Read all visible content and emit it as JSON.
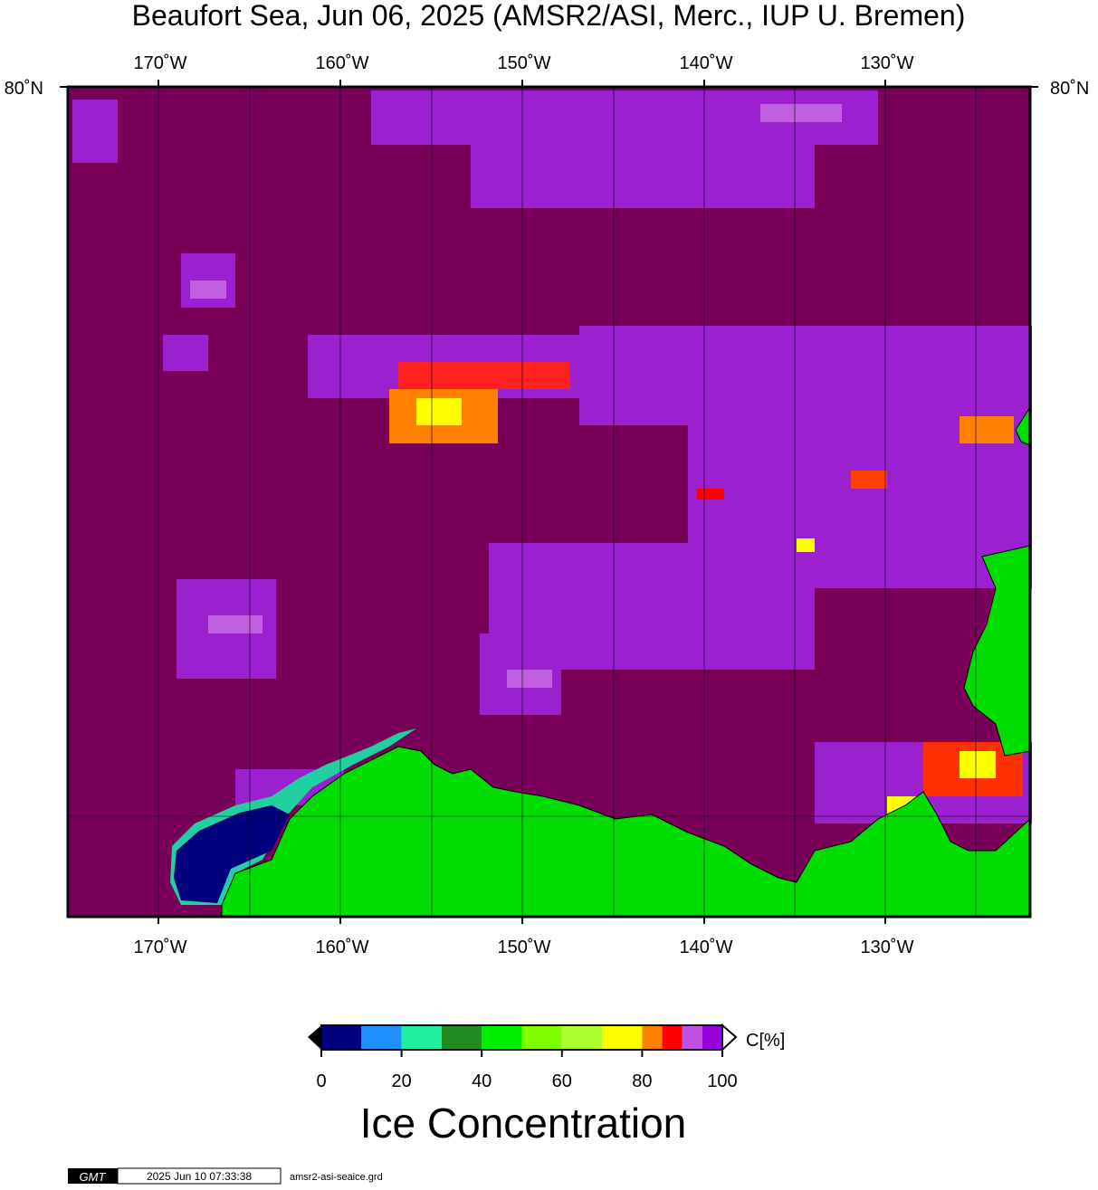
{
  "header": {
    "title": "Beaufort Sea, Jun 06, 2025 (AMSR2/ASI, Merc., IUP U. Bremen)"
  },
  "map": {
    "lon_labels": [
      "170˚W",
      "160˚W",
      "150˚W",
      "140˚W",
      "130˚W"
    ],
    "lat_label": "80˚N"
  },
  "colorbar": {
    "bounds": [
      0,
      10,
      20,
      30,
      40,
      50,
      60,
      70,
      80,
      85,
      90,
      95,
      100
    ],
    "colors": [
      "#00007f",
      "#1e90ff",
      "#20f0a0",
      "#228b22",
      "#00ee00",
      "#7fff00",
      "#adff2f",
      "#ffff00",
      "#ff8000",
      "#ff0000",
      "#c050e0",
      "#9800d8"
    ],
    "ticks": [
      0,
      20,
      40,
      60,
      80,
      100
    ],
    "unit": "C[%]",
    "label": "Ice Concentration"
  },
  "footer": {
    "logo": "GMT",
    "timestamp": "2025 Jun 10 07:33:38",
    "file": "amsr2-asi-seaice.grd"
  }
}
